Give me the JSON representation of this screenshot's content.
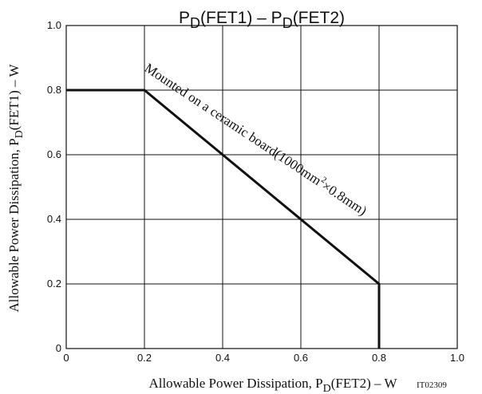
{
  "chart_data": {
    "type": "line",
    "title": {
      "main": "P",
      "sub1": "D",
      "mid": "(FET1)  –  P",
      "sub2": "D",
      "end": "(FET2)"
    },
    "xlabel": {
      "main": "Allowable Power Dissipation, P",
      "sub": "D",
      "end": "(FET2)  –  W"
    },
    "ylabel": {
      "main": "Allowable Power Dissipation, P",
      "sub": "D",
      "end": "(FET1)  –  W"
    },
    "xlim": [
      0,
      1.0
    ],
    "ylim": [
      0,
      1.0
    ],
    "x_ticks": [
      {
        "v": 0,
        "label": "0"
      },
      {
        "v": 0.2,
        "label": "0.2"
      },
      {
        "v": 0.4,
        "label": "0.4"
      },
      {
        "v": 0.6,
        "label": "0.6"
      },
      {
        "v": 0.8,
        "label": "0.8"
      },
      {
        "v": 1.0,
        "label": "1.0"
      }
    ],
    "y_ticks": [
      {
        "v": 0,
        "label": "0"
      },
      {
        "v": 0.2,
        "label": "0.2"
      },
      {
        "v": 0.4,
        "label": "0.4"
      },
      {
        "v": 0.6,
        "label": "0.6"
      },
      {
        "v": 0.8,
        "label": "0.8"
      },
      {
        "v": 1.0,
        "label": "1.0"
      }
    ],
    "grid": true,
    "series": [
      {
        "x": [
          0,
          0.2,
          0.8,
          0.8
        ],
        "y": [
          0.8,
          0.8,
          0.2,
          0
        ]
      }
    ],
    "annotation": {
      "part1": "Mounted on a ceramic board(1000mm",
      "sup": "2",
      "part2": "×0.8mm)"
    },
    "figure_code": "IT02309"
  }
}
